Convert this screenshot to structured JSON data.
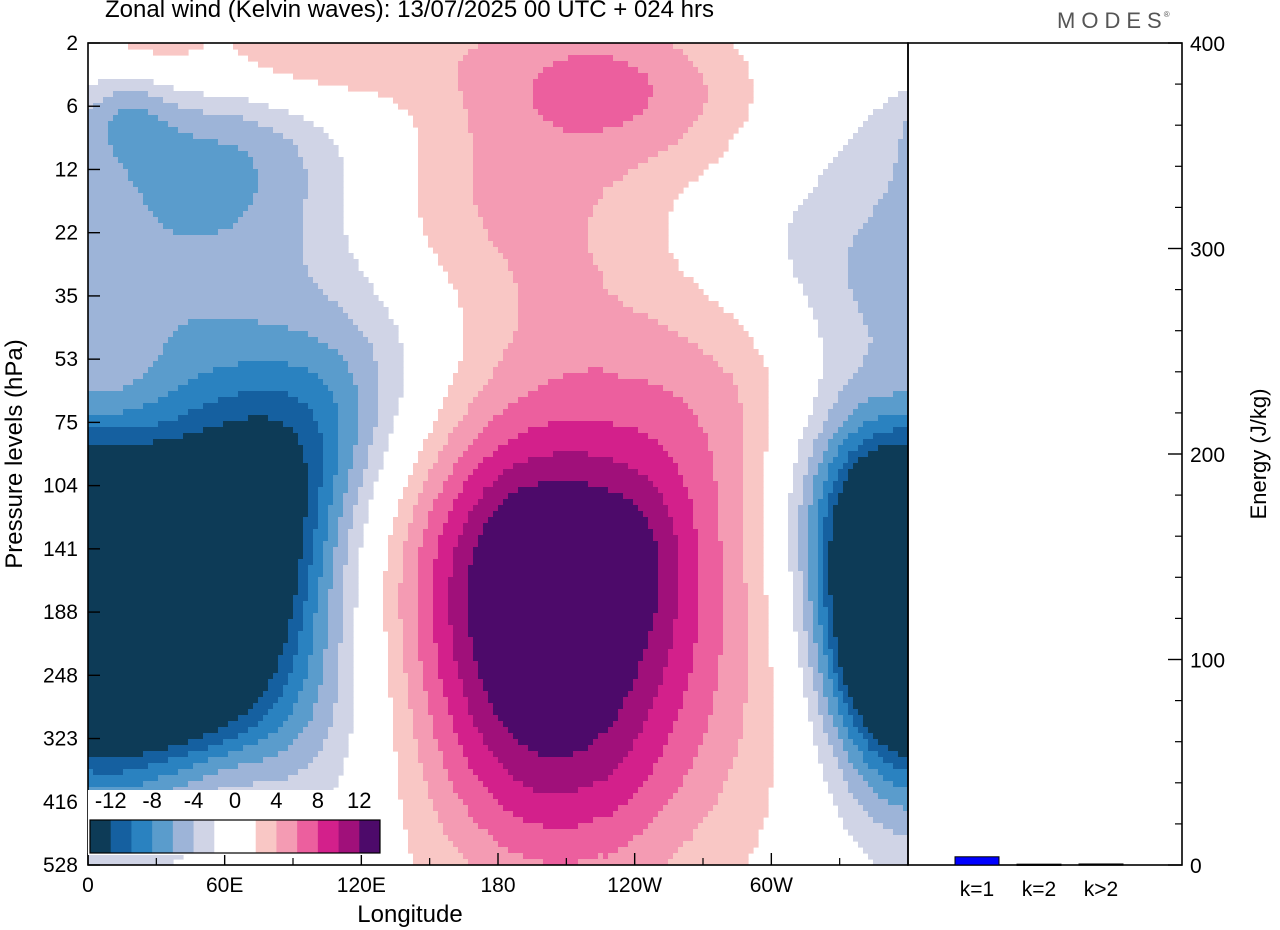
{
  "header": {
    "title": "Zonal wind (Kelvin waves):  13/07/2025  00 UTC  + 024 hrs",
    "brand": "MODES",
    "brand_mark": "®"
  },
  "chart_data": [
    {
      "type": "heatmap",
      "title": "Zonal wind (Kelvin waves):  13/07/2025  00 UTC  + 024 hrs",
      "xlabel": "Longitude",
      "ylabel": "Pressure levels (hPa)",
      "x_ticks": [
        "0",
        "60E",
        "120E",
        "180",
        "120W",
        "60W"
      ],
      "x_tick_degrees": [
        0,
        60,
        120,
        180,
        240,
        300
      ],
      "x_range": [
        0,
        360
      ],
      "y_ticks": [
        2,
        6,
        12,
        22,
        35,
        53,
        75,
        104,
        141,
        188,
        248,
        323,
        416,
        528
      ],
      "y_axis": "pressure, decreasing upward (528 hPa at bottom, 2 hPa at top)",
      "colorbar": {
        "labels": [
          "-12",
          "-8",
          "-4",
          "0",
          "4",
          "8",
          "12"
        ],
        "label_values": [
          -12,
          -8,
          -4,
          0,
          4,
          8,
          12
        ],
        "levels": [
          -14,
          -12,
          -10,
          -8,
          -6,
          -4,
          -2,
          0,
          2,
          4,
          6,
          8,
          10,
          12,
          14
        ],
        "colors": [
          "#0d3b57",
          "#1560a0",
          "#2a82c0",
          "#5a9ccc",
          "#9db4d8",
          "#d0d4e6",
          "#ffffff",
          "#ffffff",
          "#f9c7c5",
          "#f49bb3",
          "#ec5f9e",
          "#d3208b",
          "#a0107a",
          "#4d0a6a"
        ]
      },
      "features": [
        {
          "name": "easterly core",
          "longitude_deg": 40,
          "pressure_hPa": 160,
          "value": -14
        },
        {
          "name": "easterly lower band",
          "longitude_deg": 8,
          "pressure_hPa": 190,
          "value": -8
        },
        {
          "name": "easterly east flank",
          "longitude_deg": 349,
          "pressure_hPa": 200,
          "value": -8
        },
        {
          "name": "westerly core",
          "longitude_deg": 197,
          "pressure_hPa": 141,
          "value": 13
        },
        {
          "name": "westerly second max",
          "longitude_deg": 240,
          "pressure_hPa": 141,
          "value": 10
        },
        {
          "name": "westerly upper band",
          "longitude_deg": 150,
          "pressure_hPa": 12,
          "value": 6
        },
        {
          "name": "easterly upper band",
          "longitude_deg": 100,
          "pressure_hPa": 6,
          "value": -6
        }
      ]
    },
    {
      "type": "bar",
      "ylabel": "Energy (J/kg)",
      "categories": [
        "k=1",
        "k=2",
        "k>2"
      ],
      "values": [
        4,
        0.4,
        0.5
      ],
      "ylim": [
        0,
        400
      ],
      "y_ticks": [
        0,
        100,
        200,
        300,
        400
      ],
      "bar_colors": [
        "#0000ff",
        "#000000",
        "#000000"
      ]
    }
  ]
}
